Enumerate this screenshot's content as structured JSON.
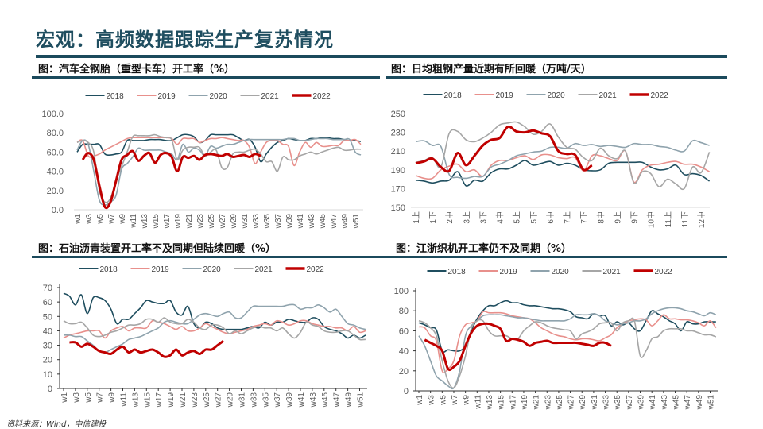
{
  "page": {
    "title": "宏观：高频数据跟踪生产复苏情况",
    "source": "资料来源：Wind，中信建投"
  },
  "colors": {
    "2018": "#1f4e5f",
    "2019": "#e8908c",
    "2020": "#8fa3ad",
    "2021": "#a6a6a6",
    "2022": "#c00000",
    "title": "#1f4e60"
  },
  "chart_data": [
    {
      "type": "line",
      "caption": "图：汽车全钢胎（重型卡车）开工率（%）",
      "x_ticks": [
        "w1",
        "w3",
        "w5",
        "w7",
        "w9",
        "w11",
        "w13",
        "w15",
        "w17",
        "w19",
        "w21",
        "w23",
        "w25",
        "w27",
        "w29",
        "w31",
        "w33",
        "w35",
        "w37",
        "w39",
        "w41",
        "w43",
        "w45",
        "w47",
        "w49",
        "w51"
      ],
      "x_unit": "week",
      "y_ticks": [
        "0.0",
        "20.0",
        "40.0",
        "60.0",
        "80.0",
        "100.0"
      ],
      "ylim": [
        0,
        100
      ],
      "legend": "top",
      "series": [
        {
          "name": "2018",
          "values": [
            60,
            68,
            68,
            68,
            68,
            58,
            57,
            58,
            60,
            72,
            72,
            72,
            72,
            73,
            73,
            73,
            72,
            72,
            75,
            78,
            78,
            76,
            70,
            72,
            78,
            78,
            78,
            78,
            78,
            75,
            72,
            73,
            65,
            50,
            58,
            65,
            70,
            72,
            74,
            73,
            72,
            72,
            74,
            74,
            75,
            75,
            74,
            74,
            73,
            72,
            72,
            71
          ]
        },
        {
          "name": "2019",
          "values": [
            70,
            72,
            56,
            56,
            58,
            62,
            65,
            68,
            71,
            74,
            75,
            75,
            75,
            75,
            75,
            75,
            75,
            74,
            68,
            74,
            74,
            74,
            70,
            72,
            74,
            74,
            75,
            74,
            73,
            72,
            72,
            65,
            48,
            60,
            70,
            72,
            72,
            68,
            66,
            46,
            60,
            70,
            65,
            70,
            66,
            66,
            67,
            67,
            72,
            72,
            73,
            68
          ]
        },
        {
          "name": "2020",
          "values": [
            62,
            72,
            68,
            40,
            10,
            5,
            8,
            15,
            42,
            48,
            55,
            64,
            62,
            62,
            62,
            62,
            60,
            58,
            52,
            68,
            60,
            64,
            62,
            56,
            66,
            64,
            66,
            68,
            68,
            70,
            72,
            73,
            73,
            73,
            73,
            73,
            73,
            73,
            74,
            74,
            72,
            72,
            73,
            74,
            74,
            74,
            73,
            73,
            73,
            73,
            60,
            57
          ]
        },
        {
          "name": "2021",
          "values": [
            70,
            72,
            70,
            60,
            20,
            8,
            12,
            30,
            45,
            60,
            76,
            77,
            77,
            77,
            78,
            76,
            75,
            73,
            52,
            62,
            65,
            65,
            65,
            56,
            60,
            62,
            44,
            44,
            58,
            60,
            60,
            62,
            63,
            58,
            50,
            50,
            40,
            55,
            52,
            52,
            56,
            58,
            60,
            58,
            60,
            62,
            64,
            65,
            62,
            62,
            63,
            63
          ]
        },
        {
          "name": "2022",
          "values": [
            null,
            52,
            59,
            52,
            25,
            3,
            8,
            30,
            52,
            57,
            61,
            51,
            56,
            59,
            49,
            57,
            59,
            55,
            40,
            55,
            54,
            56,
            52,
            57,
            58,
            57,
            56,
            58,
            55,
            56,
            57,
            55,
            58,
            56
          ]
        }
      ]
    },
    {
      "type": "line",
      "caption": "图：日均粗钢产量近期有所回暖（万吨/天）",
      "x_ticks": [
        "1上",
        "1下",
        "2中",
        "3上",
        "3下",
        "4中",
        "5上",
        "5下",
        "6中",
        "7上",
        "7下",
        "8中",
        "9上",
        "9下",
        "10中",
        "11上",
        "11下",
        "12中"
      ],
      "x_unit": "旬",
      "y_ticks": [
        "150",
        "170",
        "190",
        "210",
        "230",
        "250"
      ],
      "ylim": [
        150,
        250
      ],
      "legend": "top",
      "series": [
        {
          "name": "2018",
          "values": [
            179,
            178,
            176,
            178,
            179,
            188,
            173,
            179,
            178,
            187,
            191,
            191,
            195,
            200,
            195,
            197,
            199,
            195,
            197,
            195,
            190,
            189,
            190,
            197,
            198,
            198,
            198,
            198,
            193,
            190,
            191,
            195,
            185,
            186,
            184,
            178
          ]
        },
        {
          "name": "2019",
          "values": [
            184,
            181,
            181,
            190,
            194,
            196,
            188,
            190,
            183,
            195,
            200,
            200,
            203,
            205,
            201,
            206,
            206,
            203,
            202,
            203,
            189,
            205,
            205,
            202,
            200,
            210,
            177,
            190,
            195,
            196,
            198,
            199,
            196,
            196,
            193,
            188
          ]
        },
        {
          "name": "2020",
          "values": [
            220,
            221,
            216,
            215,
            185,
            182,
            181,
            183,
            183,
            193,
            196,
            200,
            205,
            207,
            209,
            210,
            214,
            214,
            213,
            218,
            216,
            217,
            215,
            216,
            215,
            214,
            218,
            217,
            217,
            215,
            214,
            211,
            210,
            221,
            219,
            216
          ]
        },
        {
          "name": "2021",
          "values": [
            198,
            200,
            203,
            193,
            229,
            231,
            222,
            220,
            224,
            230,
            238,
            240,
            241,
            236,
            228,
            231,
            239,
            225,
            214,
            212,
            203,
            200,
            213,
            205,
            202,
            210,
            176,
            188,
            186,
            172,
            180,
            175,
            170,
            193,
            187,
            209
          ]
        },
        {
          "name": "2022",
          "values": [
            197,
            199,
            202,
            193,
            189,
            208,
            195,
            205,
            216,
            222,
            224,
            236,
            231,
            230,
            232,
            229,
            226,
            210,
            207,
            206,
            190,
            195
          ]
        }
      ]
    },
    {
      "type": "line",
      "caption": "图：石油沥青装置开工率不及同期但陆续回暖（%）",
      "x_ticks": [
        "w1",
        "w3",
        "w5",
        "w7",
        "w9",
        "w11",
        "w13",
        "w15",
        "w17",
        "w19",
        "w21",
        "w23",
        "w25",
        "w27",
        "w29",
        "w31",
        "w33",
        "w35",
        "w37",
        "w39",
        "w41",
        "w43",
        "w45",
        "w47",
        "w49",
        "w51"
      ],
      "x_unit": "week",
      "y_ticks": [
        "0",
        "10",
        "20",
        "30",
        "40",
        "50",
        "60",
        "70"
      ],
      "ylim": [
        0,
        70
      ],
      "legend": "top",
      "series": [
        {
          "name": "2018",
          "values": [
            66,
            64,
            58,
            65,
            52,
            63,
            63,
            61,
            55,
            45,
            48,
            48,
            52,
            56,
            61,
            60,
            59,
            59,
            61,
            53,
            51,
            57,
            45,
            42,
            46,
            45,
            42,
            41,
            41,
            41,
            41,
            42,
            43,
            42,
            46,
            44,
            46,
            46,
            48,
            47,
            46,
            46,
            49,
            48,
            43,
            41,
            40,
            38,
            35,
            37,
            35,
            37
          ]
        },
        {
          "name": "2019",
          "values": [
            35,
            37,
            38,
            39,
            40,
            40,
            40,
            35,
            40,
            42,
            43,
            40,
            42,
            42,
            42,
            47,
            46,
            45,
            43,
            41,
            43,
            40,
            40,
            42,
            45,
            43,
            41,
            39,
            38,
            39,
            40,
            41,
            43,
            44,
            45,
            44,
            47,
            46,
            44,
            45,
            47,
            47,
            45,
            44,
            43,
            43,
            42,
            42,
            40,
            43,
            39,
            40
          ]
        },
        {
          "name": "2020",
          "values": [
            37,
            37,
            36,
            36,
            33,
            30,
            26,
            25,
            27,
            29,
            31,
            34,
            35,
            36,
            38,
            40,
            42,
            46,
            47,
            46,
            45,
            45,
            48,
            51,
            52,
            51,
            50,
            52,
            53,
            49,
            49,
            53,
            57,
            57,
            57,
            57,
            57,
            57,
            58,
            58,
            55,
            56,
            56,
            58,
            56,
            53,
            55,
            50,
            45,
            44,
            42,
            41
          ]
        },
        {
          "name": "2021",
          "values": [
            47,
            45,
            45,
            46,
            42,
            37,
            36,
            37,
            39,
            40,
            42,
            44,
            44,
            45,
            48,
            48,
            46,
            49,
            46,
            45,
            45,
            48,
            46,
            42,
            41,
            44,
            44,
            42,
            38,
            40,
            38,
            40,
            42,
            43,
            42,
            42,
            40,
            42,
            38,
            35,
            39,
            46,
            44,
            43,
            40,
            39,
            39,
            40,
            40,
            37,
            34,
            34
          ]
        },
        {
          "name": "2022",
          "values": [
            null,
            32,
            32,
            29,
            31,
            29,
            26,
            25,
            24,
            27,
            29,
            25,
            27,
            25,
            26,
            27,
            25,
            22,
            23,
            27,
            23,
            25,
            26,
            24,
            27,
            27,
            30,
            33
          ]
        }
      ]
    },
    {
      "type": "line",
      "caption": "图：江浙织机开工率仍不及同期（%）",
      "x_ticks": [
        "w1",
        "w3",
        "w5",
        "w7",
        "w9",
        "w11",
        "w13",
        "w15",
        "w17",
        "w19",
        "w21",
        "w23",
        "w25",
        "w27",
        "w29",
        "w31",
        "w33",
        "w35",
        "w37",
        "w39",
        "w41",
        "w43",
        "w45",
        "w47",
        "w49",
        "w51"
      ],
      "x_unit": "week",
      "y_ticks": [
        "0",
        "20",
        "40",
        "60",
        "80",
        "100"
      ],
      "ylim": [
        0,
        100
      ],
      "legend": "top",
      "series": [
        {
          "name": "2018",
          "values": [
            68,
            66,
            63,
            61,
            40,
            41,
            40,
            40,
            45,
            60,
            72,
            80,
            85,
            85,
            88,
            90,
            88,
            88,
            86,
            85,
            85,
            84,
            83,
            82,
            82,
            81,
            79,
            74,
            73,
            72,
            77,
            75,
            75,
            65,
            69,
            66,
            68,
            62,
            60,
            70,
            80,
            77,
            74,
            70,
            67,
            60,
            69,
            67,
            67,
            69,
            69,
            69
          ]
        },
        {
          "name": "2019",
          "values": [
            64,
            63,
            55,
            50,
            20,
            22,
            30,
            55,
            66,
            68,
            70,
            79,
            78,
            78,
            78,
            77,
            75,
            74,
            73,
            72,
            68,
            63,
            60,
            57,
            55,
            54,
            52,
            51,
            52,
            52,
            51,
            50,
            53,
            56,
            63,
            67,
            70,
            71,
            72,
            71,
            65,
            70,
            76,
            72,
            72,
            71,
            71,
            70,
            68,
            65,
            70,
            63
          ]
        },
        {
          "name": "2020",
          "values": [
            55,
            45,
            30,
            15,
            10,
            5,
            3,
            20,
            55,
            65,
            70,
            75,
            76,
            76,
            76,
            75,
            74,
            73,
            73,
            72,
            71,
            70,
            70,
            70,
            70,
            70,
            72,
            76,
            76,
            76,
            77,
            75,
            70,
            68,
            66,
            67,
            68,
            70,
            70,
            72,
            77,
            80,
            82,
            83,
            83,
            82,
            80,
            79,
            77,
            75,
            78,
            76
          ]
        },
        {
          "name": "2021",
          "values": [
            70,
            68,
            63,
            55,
            30,
            10,
            3,
            15,
            35,
            62,
            70,
            70,
            60,
            55,
            55,
            55,
            52,
            52,
            60,
            65,
            69,
            68,
            65,
            63,
            62,
            61,
            60,
            52,
            57,
            59,
            62,
            67,
            68,
            68,
            60,
            68,
            70,
            70,
            35,
            40,
            52,
            54,
            60,
            62,
            62,
            62,
            60,
            60,
            58,
            56,
            56,
            54
          ]
        },
        {
          "name": "2022",
          "values": [
            null,
            51,
            48,
            45,
            40,
            22,
            24,
            30,
            45,
            58,
            65,
            67,
            67,
            65,
            62,
            50,
            52,
            51,
            49,
            45,
            48,
            49,
            50,
            48,
            48,
            48,
            48,
            48,
            47,
            46,
            45,
            48,
            48,
            45
          ]
        }
      ]
    }
  ]
}
